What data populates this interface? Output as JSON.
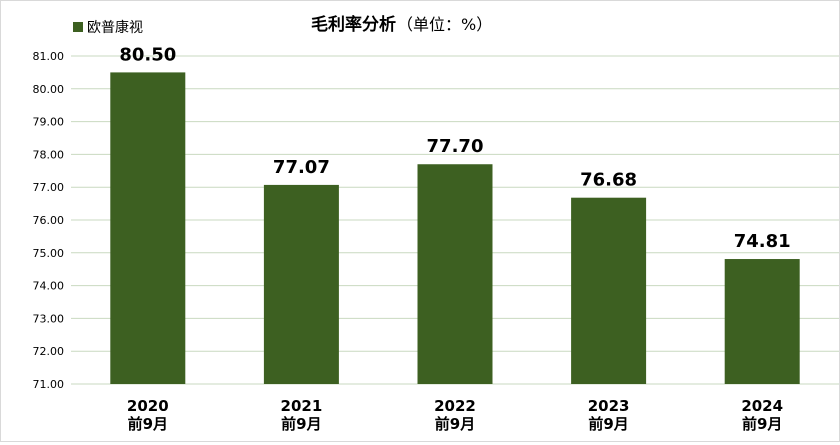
{
  "chart_data": {
    "type": "bar",
    "title": "毛利率分析",
    "title_unit": "（单位：%）",
    "legend": {
      "label": "欧普康视",
      "position": "top-left"
    },
    "colors": {
      "bar": "#3d6021",
      "grid": "#c9d9c0",
      "text": "#000000"
    },
    "categories": [
      {
        "year": "2020",
        "period": "前9月"
      },
      {
        "year": "2021",
        "period": "前9月"
      },
      {
        "year": "2022",
        "period": "前9月"
      },
      {
        "year": "2023",
        "period": "前9月"
      },
      {
        "year": "2024",
        "period": "前9月"
      }
    ],
    "series": [
      {
        "name": "欧普康视",
        "values": [
          80.5,
          77.07,
          77.7,
          76.68,
          74.81
        ]
      }
    ],
    "data_labels": [
      "80.50",
      "77.07",
      "77.70",
      "76.68",
      "74.81"
    ],
    "ylim": [
      71,
      81
    ],
    "yticks": [
      "71.00",
      "72.00",
      "73.00",
      "74.00",
      "75.00",
      "76.00",
      "77.00",
      "78.00",
      "79.00",
      "80.00",
      "81.00"
    ],
    "grid": true
  }
}
